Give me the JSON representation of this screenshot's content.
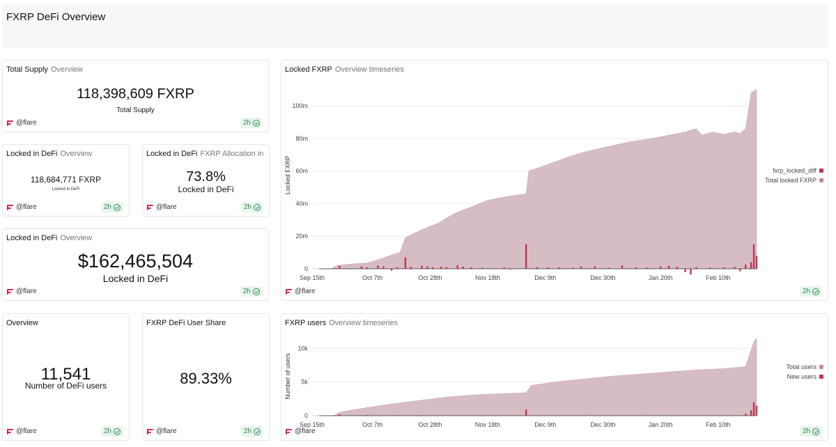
{
  "page": {
    "title": "FXRP DeFi Overview"
  },
  "footer": {
    "brand": "@flare",
    "freshness": "2h"
  },
  "colors": {
    "dark": "#c0344f",
    "area": "#d6bdc4",
    "swatch_light": "#c48a9b"
  },
  "cards": {
    "total_supply": {
      "title": "Total Supply",
      "subtitle": "Overview",
      "value": "118,398,609 FXRP",
      "label": "Total Supply"
    },
    "locked_defi_small": {
      "title": "Locked in DeFi",
      "subtitle": "Overview",
      "value": "118,684,771 FXRP",
      "label": "Locked in DeFi"
    },
    "locked_pct": {
      "title": "Locked in DeFi",
      "subtitle": "FXRP Allocation in ...",
      "value": "73.8%",
      "label": "Locked in DeFi"
    },
    "locked_usd": {
      "title": "Locked in DeFi",
      "subtitle": "Overview",
      "value": "$162,465,504",
      "label": "Locked in DeFi"
    },
    "users": {
      "title": "Overview",
      "value": "11,541",
      "label": "Number of DeFi users"
    },
    "user_share": {
      "title": "FXRP DeFi User Share",
      "value": "89.33%"
    },
    "locked_chart": {
      "title": "Locked FXRP",
      "subtitle": "Overview timeseries"
    },
    "users_chart": {
      "title": "FXRP users",
      "subtitle": "Overview timeseries"
    }
  },
  "chart_data": [
    {
      "type": "area",
      "ylabel": "Locked FXRP",
      "y_ticks": [
        "0",
        "20m",
        "40m",
        "60m",
        "80m",
        "100m"
      ],
      "ylim": [
        0,
        115000000
      ],
      "x_ticks": [
        "Sep 15th",
        "Oct 7th",
        "Oct 28th",
        "Nov 18th",
        "Dec 9th",
        "Dec 30th",
        "Jan 20th",
        "Feb 10th"
      ],
      "x_domain_days": [
        0,
        162
      ],
      "x_tick_days": [
        0,
        22,
        43,
        64,
        85,
        106,
        127,
        148
      ],
      "legend_position": "right",
      "series": [
        {
          "name": "fxrp_locked_diff",
          "kind": "bar",
          "points": [
            [
              10,
              1800000
            ],
            [
              18,
              1500000
            ],
            [
              20,
              800000
            ],
            [
              24,
              2000000
            ],
            [
              26,
              1400000
            ],
            [
              29,
              -1200000
            ],
            [
              31,
              900000
            ],
            [
              34,
              7000000
            ],
            [
              36,
              1200000
            ],
            [
              40,
              1800000
            ],
            [
              42,
              1500000
            ],
            [
              44,
              1000000
            ],
            [
              47,
              1200000
            ],
            [
              49,
              1000000
            ],
            [
              53,
              2200000
            ],
            [
              55,
              1300000
            ],
            [
              58,
              900000
            ],
            [
              62,
              700000
            ],
            [
              70,
              800000
            ],
            [
              72,
              -500000
            ],
            [
              78,
              15000000
            ],
            [
              82,
              1000000
            ],
            [
              86,
              800000
            ],
            [
              90,
              900000
            ],
            [
              95,
              700000
            ],
            [
              98,
              1400000
            ],
            [
              103,
              1500000
            ],
            [
              108,
              700000
            ],
            [
              113,
              2000000
            ],
            [
              118,
              900000
            ],
            [
              122,
              700000
            ],
            [
              127,
              1500000
            ],
            [
              130,
              1800000
            ],
            [
              133,
              1200000
            ],
            [
              136,
              -2000000
            ],
            [
              138,
              -3500000
            ],
            [
              140,
              1000000
            ],
            [
              145,
              700000
            ],
            [
              150,
              900000
            ],
            [
              154,
              1200000
            ],
            [
              156,
              -1500000
            ],
            [
              158,
              2500000
            ],
            [
              160,
              4000000
            ],
            [
              161,
              15000000
            ],
            [
              162,
              8000000
            ]
          ]
        },
        {
          "name": "Total locked FXRP",
          "kind": "area",
          "points": [
            [
              0,
              0
            ],
            [
              7,
              0
            ],
            [
              9,
              2000000
            ],
            [
              15,
              3000000
            ],
            [
              20,
              3500000
            ],
            [
              25,
              6000000
            ],
            [
              30,
              9000000
            ],
            [
              32,
              10000000
            ],
            [
              34,
              19000000
            ],
            [
              40,
              24000000
            ],
            [
              46,
              28000000
            ],
            [
              52,
              34000000
            ],
            [
              58,
              38000000
            ],
            [
              64,
              42000000
            ],
            [
              70,
              44000000
            ],
            [
              76,
              45500000
            ],
            [
              78,
              46000000
            ],
            [
              79,
              60000000
            ],
            [
              86,
              64000000
            ],
            [
              94,
              69000000
            ],
            [
              100,
              72000000
            ],
            [
              108,
              75000000
            ],
            [
              116,
              78000000
            ],
            [
              124,
              80000000
            ],
            [
              130,
              82000000
            ],
            [
              136,
              84000000
            ],
            [
              140,
              86000000
            ],
            [
              142,
              82000000
            ],
            [
              146,
              84000000
            ],
            [
              150,
              82500000
            ],
            [
              154,
              84000000
            ],
            [
              156,
              83000000
            ],
            [
              158,
              86000000
            ],
            [
              160,
              108000000
            ],
            [
              162,
              110000000
            ]
          ]
        }
      ]
    },
    {
      "type": "area",
      "ylabel": "Number of users",
      "y_ticks": [
        "0",
        "5k",
        "10k"
      ],
      "ylim": [
        0,
        11700
      ],
      "x_ticks": [
        "Sep 15th",
        "Oct 7th",
        "Oct 28th",
        "Nov 18th",
        "Dec 9th",
        "Dec 30th",
        "Jan 20th",
        "Feb 10th"
      ],
      "x_domain_days": [
        0,
        162
      ],
      "x_tick_days": [
        0,
        22,
        43,
        64,
        85,
        106,
        127,
        148
      ],
      "legend_position": "right",
      "series": [
        {
          "name": "Total users",
          "kind": "area",
          "points": [
            [
              0,
              0
            ],
            [
              8,
              0
            ],
            [
              10,
              500
            ],
            [
              20,
              1200
            ],
            [
              30,
              1800
            ],
            [
              40,
              2300
            ],
            [
              50,
              2800
            ],
            [
              60,
              3100
            ],
            [
              70,
              3300
            ],
            [
              78,
              3400
            ],
            [
              80,
              4500
            ],
            [
              90,
              5100
            ],
            [
              100,
              5500
            ],
            [
              110,
              5900
            ],
            [
              120,
              6200
            ],
            [
              130,
              6500
            ],
            [
              140,
              6800
            ],
            [
              150,
              7000
            ],
            [
              158,
              7300
            ],
            [
              161,
              11000
            ],
            [
              162,
              11500
            ]
          ]
        },
        {
          "name": "New users",
          "kind": "bar",
          "points": [
            [
              10,
              200
            ],
            [
              20,
              100
            ],
            [
              30,
              100
            ],
            [
              40,
              80
            ],
            [
              78,
              900
            ],
            [
              100,
              60
            ],
            [
              120,
              60
            ],
            [
              158,
              300
            ],
            [
              160,
              800
            ],
            [
              161,
              2000
            ],
            [
              162,
              1500
            ]
          ]
        }
      ]
    }
  ]
}
